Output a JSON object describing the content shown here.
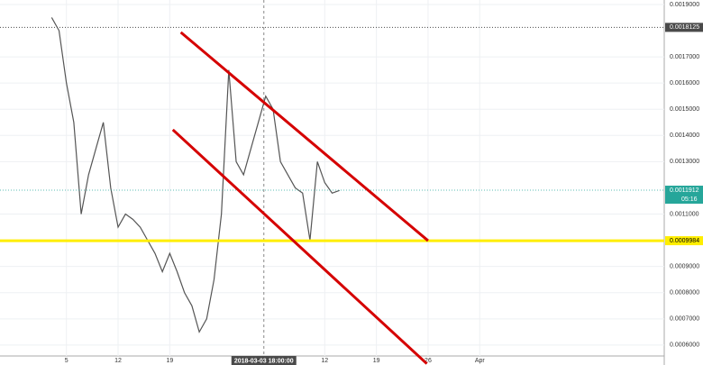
{
  "chart_data": {
    "type": "line",
    "x": [
      "2018-02-03",
      "2018-02-04",
      "2018-02-05",
      "2018-02-06",
      "2018-02-07",
      "2018-02-08",
      "2018-02-09",
      "2018-02-10",
      "2018-02-11",
      "2018-02-12",
      "2018-02-13",
      "2018-02-14",
      "2018-02-15",
      "2018-02-16",
      "2018-02-17",
      "2018-02-18",
      "2018-02-19",
      "2018-02-20",
      "2018-02-21",
      "2018-02-22",
      "2018-02-23",
      "2018-02-24",
      "2018-02-25",
      "2018-02-26",
      "2018-02-27",
      "2018-02-28",
      "2018-03-01",
      "2018-03-02",
      "2018-03-03",
      "2018-03-04",
      "2018-03-05",
      "2018-03-06",
      "2018-03-07",
      "2018-03-08",
      "2018-03-09",
      "2018-03-10",
      "2018-03-11",
      "2018-03-12",
      "2018-03-13",
      "2018-03-14"
    ],
    "series": [
      {
        "color": "#555555",
        "values": [
          0.00185,
          0.0018,
          0.0016,
          0.00145,
          0.0011,
          0.00125,
          0.00135,
          0.00145,
          0.0012,
          0.00105,
          0.0011,
          0.00108,
          0.00105,
          0.001,
          0.00095,
          0.00088,
          0.00095,
          0.00088,
          0.0008,
          0.00075,
          0.00065,
          0.0007,
          0.00085,
          0.0011,
          0.00165,
          0.0013,
          0.00125,
          0.00135,
          0.00145,
          0.00155,
          0.0015,
          0.0013,
          0.00125,
          0.0012,
          0.00118,
          0.001,
          0.0013,
          0.00122,
          0.00118,
          0.00119
        ]
      }
    ],
    "xlim": [
      "2018-01-27",
      "2018-04-27"
    ],
    "xticks": [
      {
        "value": "2018-02-05",
        "label": "5"
      },
      {
        "value": "2018-02-12",
        "label": "12"
      },
      {
        "value": "2018-02-19",
        "label": "19"
      },
      {
        "value": "2018-03-12",
        "label": "12"
      },
      {
        "value": "2018-03-19",
        "label": "19"
      },
      {
        "value": "2018-03-26",
        "label": "26"
      },
      {
        "value": "2018-04-02",
        "label": "Apr"
      }
    ],
    "ylim": [
      0.000524,
      0.001917
    ],
    "yticks": [
      {
        "value": 0.0006,
        "label": "0.0006000"
      },
      {
        "value": 0.0007,
        "label": "0.0007000"
      },
      {
        "value": 0.0008,
        "label": "0.0008000"
      },
      {
        "value": 0.0009,
        "label": "0.0009000"
      },
      {
        "value": 0.0011,
        "label": "0.0011000"
      },
      {
        "value": 0.0013,
        "label": "0.0013000"
      },
      {
        "value": 0.0014,
        "label": "0.0014000"
      },
      {
        "value": 0.0015,
        "label": "0.0015000"
      },
      {
        "value": 0.0016,
        "label": "0.0016000"
      },
      {
        "value": 0.0017,
        "label": "0.0017000"
      },
      {
        "value": 0.0019,
        "label": "0.0019000"
      }
    ],
    "grid": true,
    "trendlines": [
      {
        "color": "#d50000",
        "x": [
          "2018-02-20T12:00",
          "2018-03-26T00:00"
        ],
        "values": [
          0.0017935,
          0.0009984
        ]
      },
      {
        "color": "#d50000",
        "x": [
          "2018-02-19T10:00",
          "2018-03-25T20:00"
        ],
        "values": [
          0.001422,
          0.000529
        ]
      }
    ],
    "levels": [
      {
        "value": 0.0009984,
        "color": "#ffee00",
        "text_color": "#000000"
      },
      {
        "value": 0.0011912,
        "color": "#26a69a",
        "text_color": "#ffffff",
        "note": "05:16"
      },
      {
        "value": 0.0018125,
        "color": "#4a4a4a",
        "text_color": "#ffffff"
      }
    ],
    "crosshair": {
      "x": "2018-03-03T18:00",
      "label": "2018-03-03 18:00:00"
    }
  }
}
